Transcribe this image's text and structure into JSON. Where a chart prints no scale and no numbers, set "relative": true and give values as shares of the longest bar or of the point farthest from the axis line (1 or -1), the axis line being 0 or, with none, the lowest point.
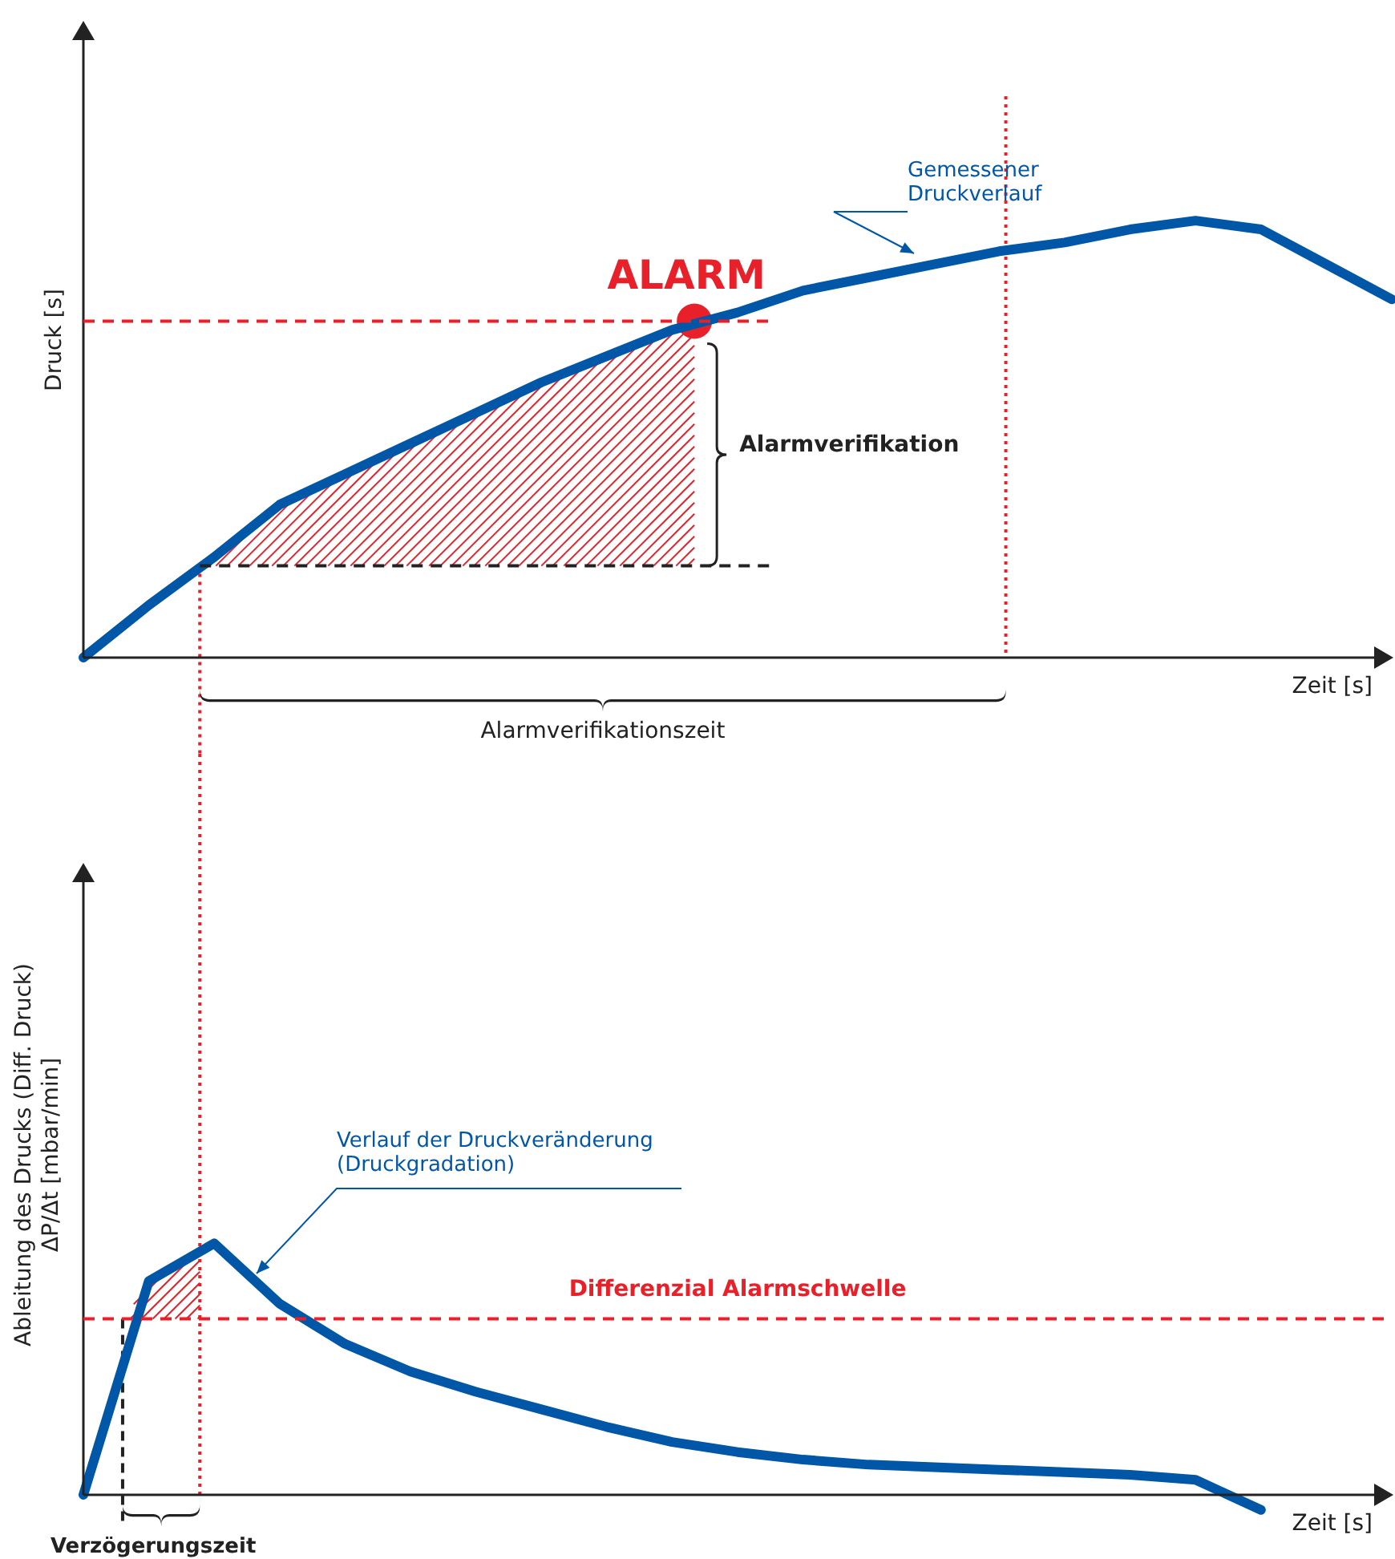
{
  "chart_data": [
    {
      "type": "line",
      "relative": true,
      "ylabel": "Druck [s]",
      "xlabel": "Zeit [s]",
      "categories": [
        null,
        null,
        null,
        null,
        null,
        null,
        null,
        null,
        null,
        null,
        null,
        null,
        null,
        null,
        null,
        null,
        null,
        null,
        null,
        null,
        null
      ],
      "series": [
        {
          "name": "Gemessener\nDruckverlauf",
          "color": "#0057a8",
          "values": [
            0,
            0.12,
            0.23,
            0.35,
            0.42,
            0.49,
            0.56,
            0.63,
            0.69,
            0.75,
            0.79,
            0.84,
            0.87,
            0.9,
            0.93,
            0.95,
            0.98,
            1,
            0.98,
            0.9,
            0.82
          ]
        }
      ],
      "ref_lines": [
        {
          "axis": "y",
          "value": 0.77,
          "color": "#e8202a",
          "line_style": "dashed"
        },
        {
          "axis": "y",
          "value": 0.21,
          "color": "#222222",
          "line_style": "dashed"
        }
      ],
      "annotations": [
        "ALARM",
        "Alarmverifikation",
        "Alarmverifikationszeit"
      ]
    },
    {
      "type": "line",
      "relative": true,
      "ylabel": "Ableitung des Drucks (Diff. Druck)\nΔP/Δt [mbar/min]",
      "xlabel": "Zeit [s]",
      "categories": [
        null,
        null,
        null,
        null,
        null,
        null,
        null,
        null,
        null,
        null,
        null,
        null,
        null,
        null,
        null,
        null,
        null,
        null,
        null,
        null,
        null
      ],
      "series": [
        {
          "name": "Verlauf der Druckveränderung\n(Druckgradation)",
          "color": "#0057a8",
          "values": [
            0,
            0.85,
            1,
            0.76,
            0.6,
            0.49,
            0.41,
            0.34,
            0.27,
            0.21,
            0.17,
            0.14,
            0.12,
            0.11,
            0.1,
            0.09,
            0.08,
            0.06,
            -0.06,
            null,
            null
          ]
        }
      ],
      "ref_lines": [
        {
          "axis": "y",
          "value": 0.7,
          "color": "#e8202a",
          "line_style": "dashed",
          "label": "Differenzial Alarmschwelle"
        }
      ],
      "annotations": [
        "Verzögerungszeit"
      ]
    }
  ]
}
